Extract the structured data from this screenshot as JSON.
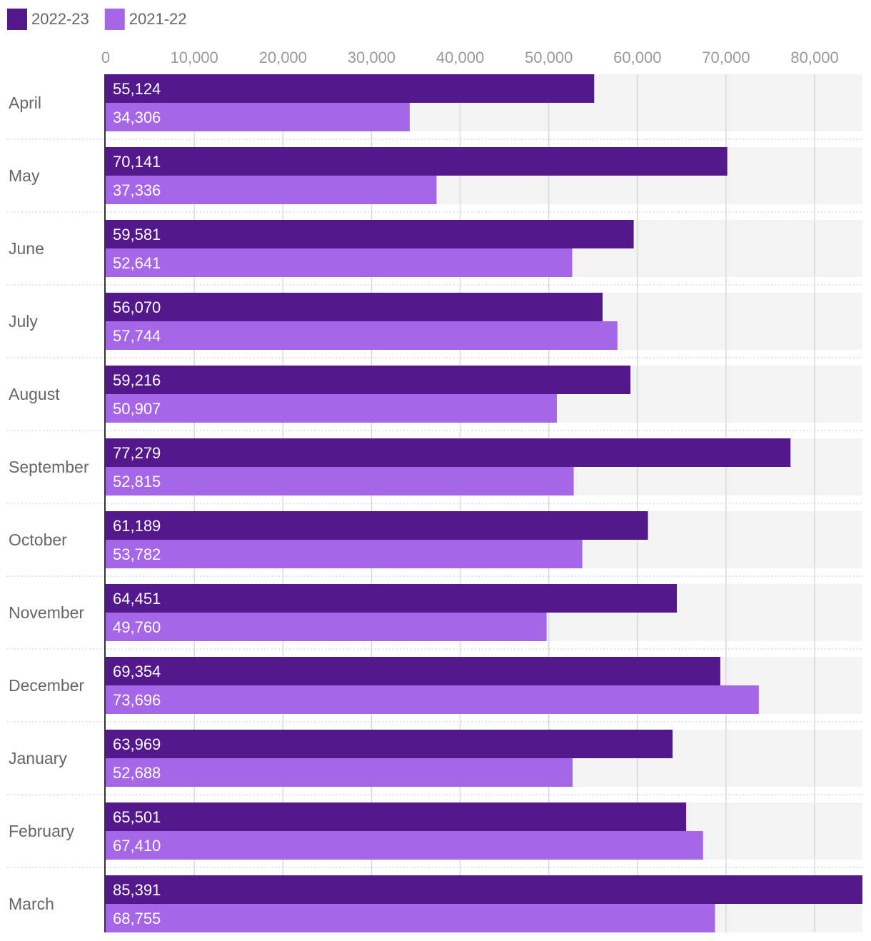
{
  "chart_data": {
    "type": "bar",
    "orientation": "horizontal",
    "categories": [
      "April",
      "May",
      "June",
      "July",
      "August",
      "September",
      "October",
      "November",
      "December",
      "January",
      "February",
      "March"
    ],
    "series": [
      {
        "name": "2022-23",
        "color": "#52188c",
        "values": [
          55124,
          70141,
          59581,
          56070,
          59216,
          77279,
          61189,
          64451,
          69354,
          63969,
          65501,
          85391
        ]
      },
      {
        "name": "2021-22",
        "color": "#a666e8",
        "values": [
          34306,
          37336,
          52641,
          57744,
          50907,
          52815,
          53782,
          49760,
          73696,
          52688,
          67410,
          68755
        ]
      }
    ],
    "data_labels": {
      "2022-23": [
        "55,124",
        "70,141",
        "59,581",
        "56,070",
        "59,216",
        "77,279",
        "61,189",
        "64,451",
        "69,354",
        "63,969",
        "65,501",
        "85,391"
      ],
      "2021-22": [
        "34,306",
        "37,336",
        "52,641",
        "57,744",
        "50,907",
        "52,815",
        "53,782",
        "49,760",
        "73,696",
        "52,688",
        "67,410",
        "68,755"
      ]
    },
    "x_ticks": [
      0,
      10000,
      20000,
      30000,
      40000,
      50000,
      60000,
      70000,
      80000
    ],
    "x_tick_labels": [
      "0",
      "10,000",
      "20,000",
      "30,000",
      "40,000",
      "50,000",
      "60,000",
      "70,000",
      "80,000"
    ],
    "xlim": [
      0,
      85391
    ],
    "axis_position": "top",
    "legend_position": "top-left",
    "grid": true,
    "background_band_color": "#f3f3f3",
    "title": "",
    "xlabel": "",
    "ylabel": ""
  }
}
